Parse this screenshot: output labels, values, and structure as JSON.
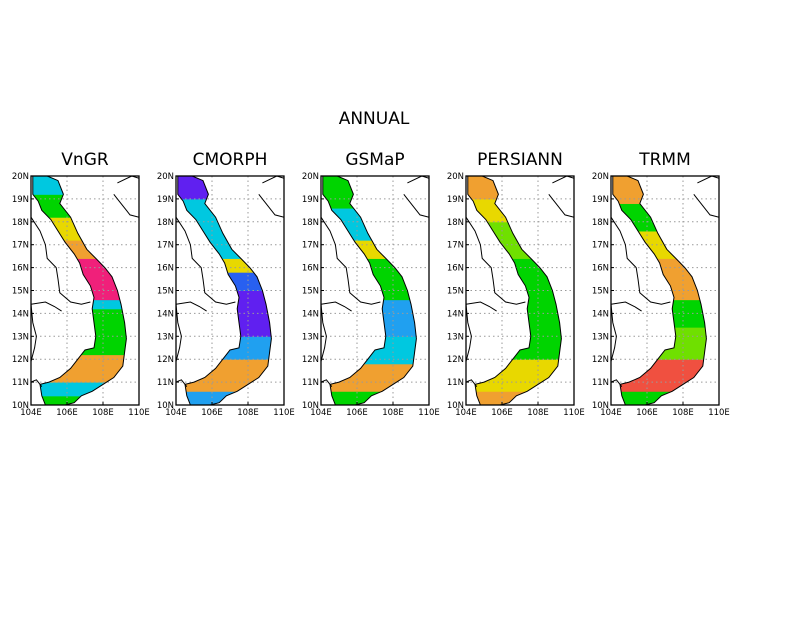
{
  "figure": {
    "title": "ANNUAL",
    "panels": [
      {
        "label": "VnGR",
        "scheme": "vngr"
      },
      {
        "label": "CMORPH",
        "scheme": "cmorph"
      },
      {
        "label": "GSMaP",
        "scheme": "gsmap"
      },
      {
        "label": "PERSIANN",
        "scheme": "persiann"
      },
      {
        "label": "TRMM",
        "scheme": "trmm"
      }
    ],
    "lat_ticks": [
      "10N",
      "11N",
      "12N",
      "13N",
      "14N",
      "15N",
      "16N",
      "17N",
      "18N",
      "19N",
      "20N"
    ],
    "lon_ticks": [
      "104E",
      "106E",
      "108E",
      "110E"
    ],
    "lon_range": [
      104,
      110
    ],
    "lat_range": [
      10,
      20
    ],
    "grid": "dotted"
  },
  "colors": {
    "green": "#00d400",
    "light_green": "#6fe000",
    "yellow": "#e8d800",
    "orange": "#f0a030",
    "red": "#f05040",
    "magenta": "#f0207a",
    "cyan": "#00c8e0",
    "sky": "#20a0f0",
    "blue": "#2860f0",
    "violet": "#6020f0"
  }
}
